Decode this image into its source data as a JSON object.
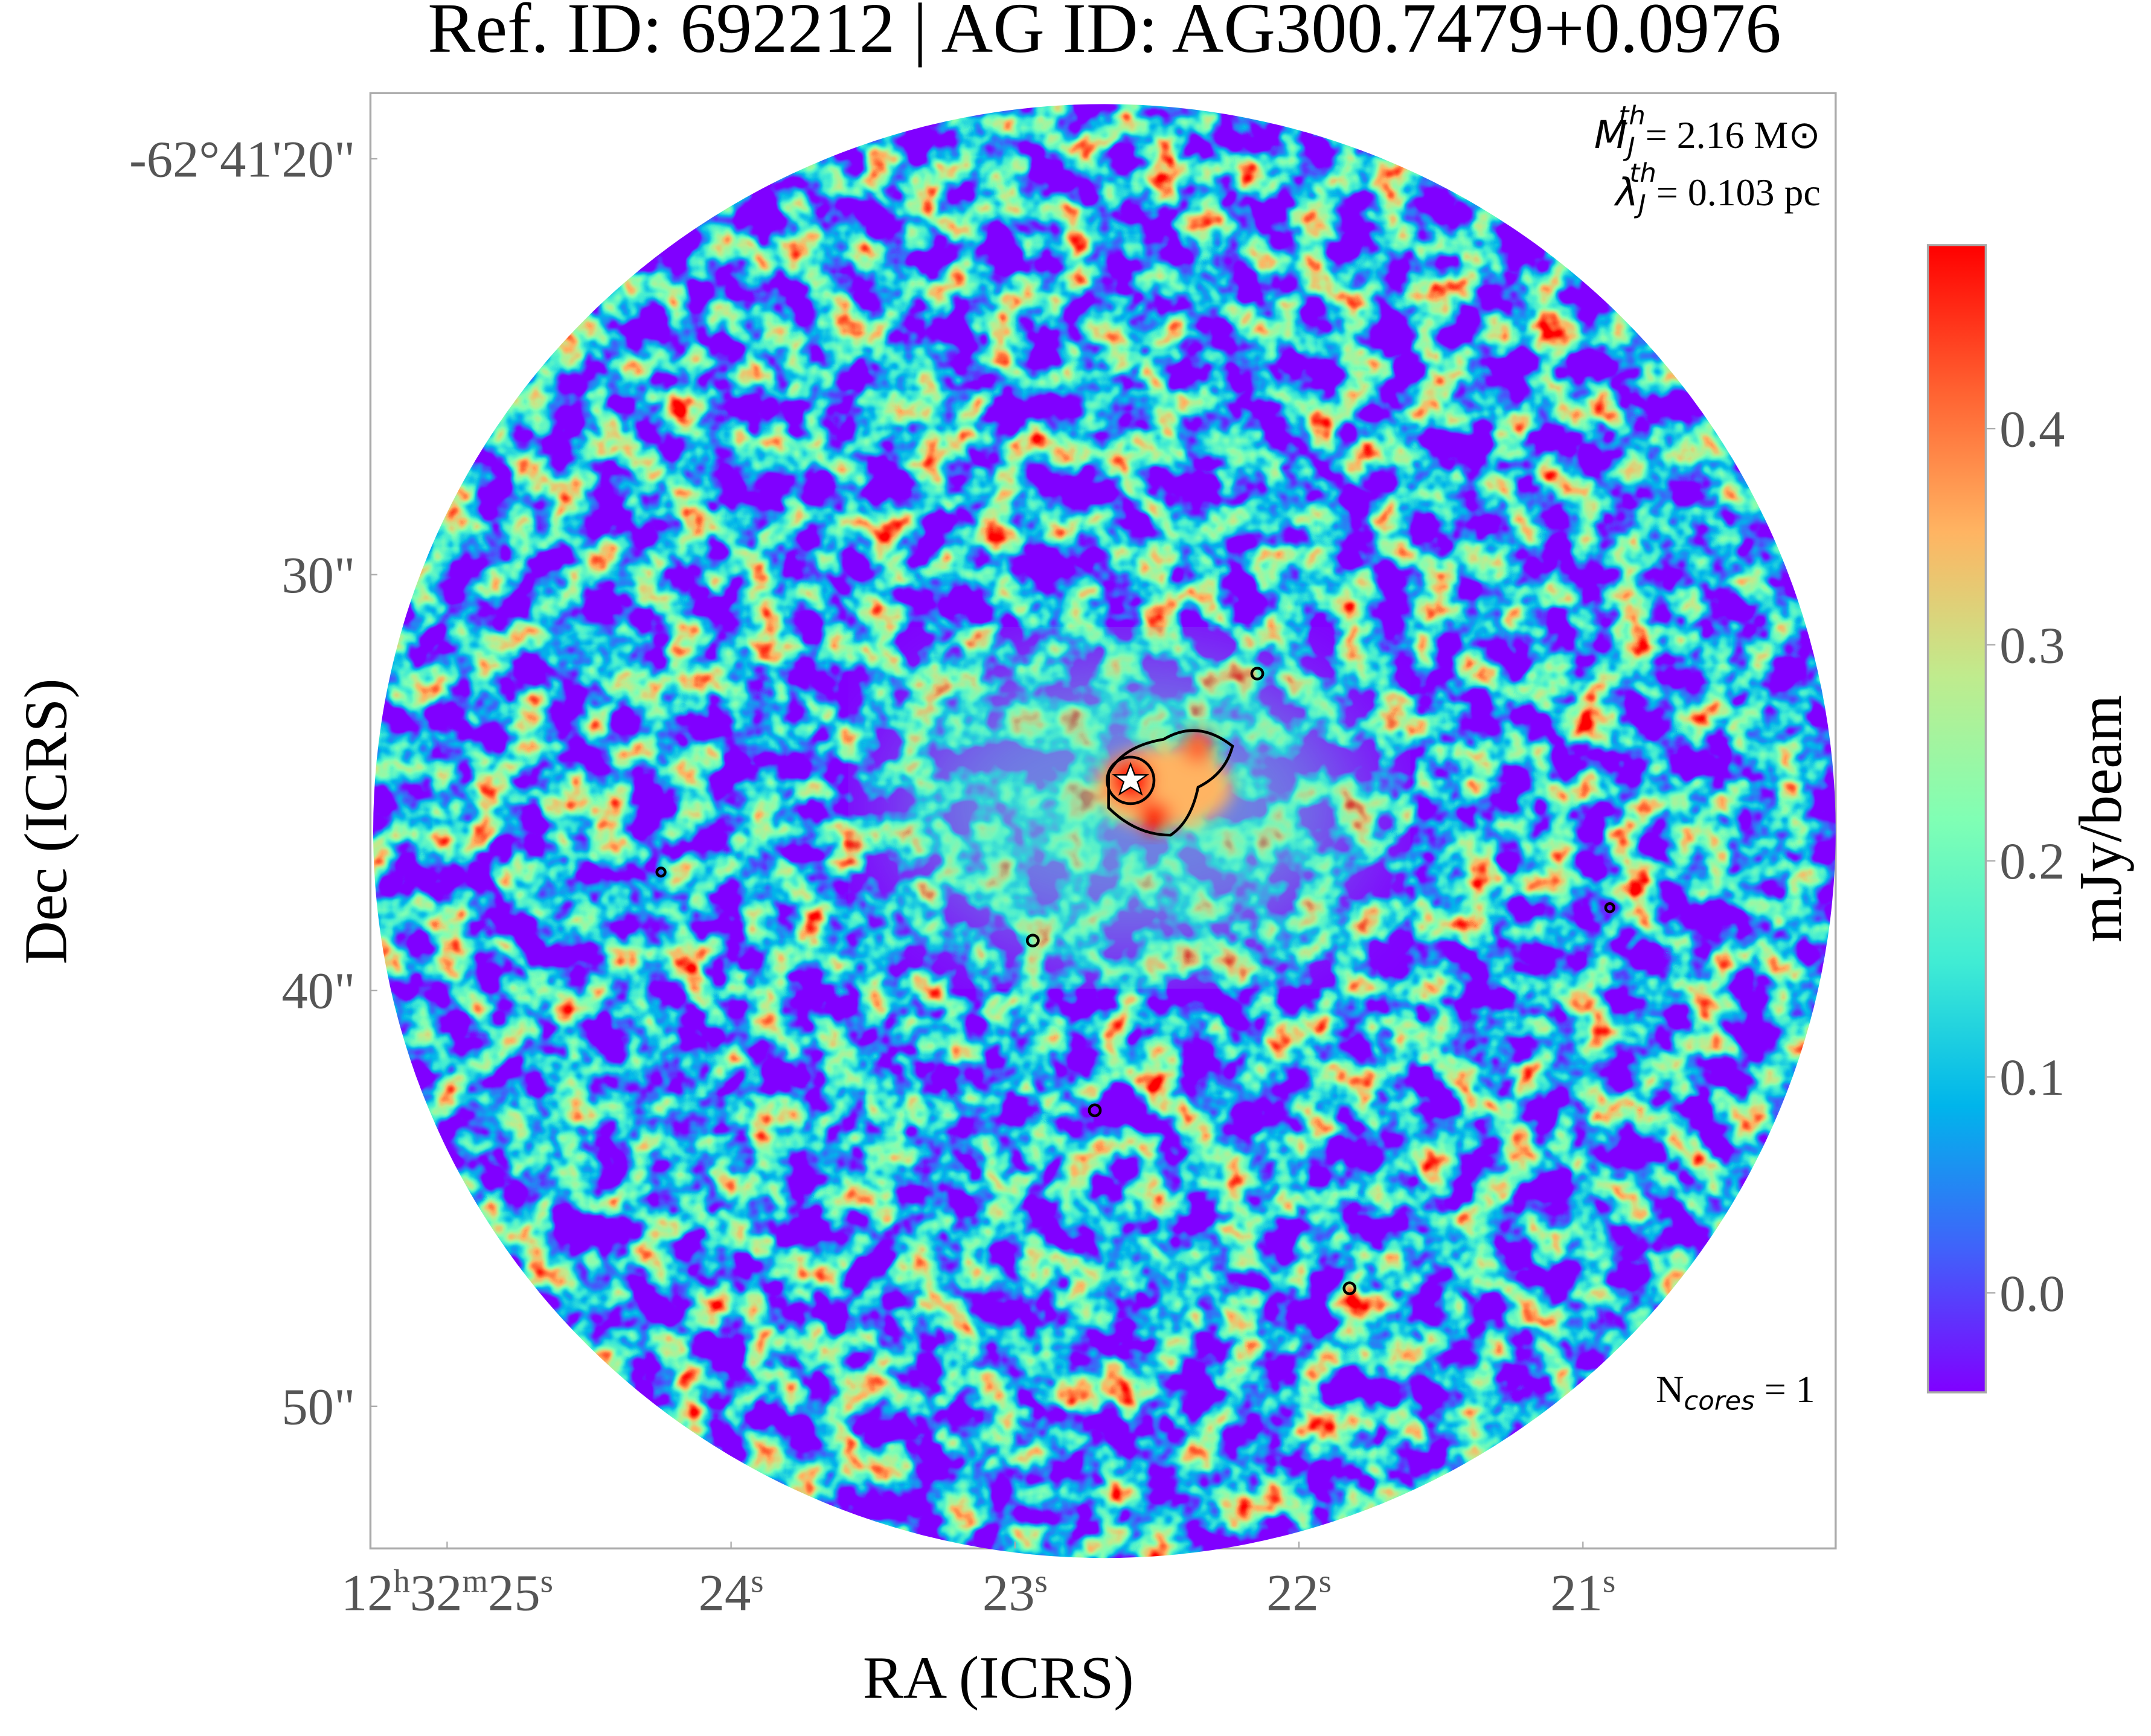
{
  "chart_data": {
    "type": "image",
    "title": "Ref. ID: 692212 | AG ID: AG300.7479+0.0976",
    "xlabel": "RA (ICRS)",
    "ylabel": "Dec (ICRS)",
    "colorbar_label": "mJy/beam",
    "xlim": [
      25.27,
      20.11
    ],
    "ylim": [
      18.42,
      53.42
    ],
    "xticks": [
      {
        "value": 25,
        "label": [
          "12",
          "h",
          "32",
          "m",
          "25",
          "s"
        ]
      },
      {
        "value": 24,
        "label": [
          "24",
          "s"
        ]
      },
      {
        "value": 23,
        "label": [
          "23",
          "s"
        ]
      },
      {
        "value": 22,
        "label": [
          "22",
          "s"
        ]
      },
      {
        "value": 21,
        "label": [
          "21",
          "s"
        ]
      }
    ],
    "yticks": [
      {
        "value": 20,
        "label": "-62°41'20\""
      },
      {
        "value": 30,
        "label": "30\""
      },
      {
        "value": 40,
        "label": "40\""
      },
      {
        "value": 50,
        "label": "50\""
      }
    ],
    "clim": [
      -0.046,
      0.485
    ],
    "cticks": [
      {
        "value": 0,
        "label": "0.0"
      },
      0.1,
      0.2,
      0.3,
      0.4
    ],
    "colormap": [
      "#8000ff",
      "#4062fa",
      "#00b5eb",
      "#40ecd4",
      "#80ffb4",
      "#c0eb8d",
      "#ffb462",
      "#ff6030",
      "#ff0000"
    ],
    "annotations": [
      {
        "base": "M",
        "sub": "J",
        "sup": "th",
        "text": "= 2.16 M⊙"
      },
      {
        "base": "λ",
        "sub": "J",
        "sup": "th",
        "text": "= 0.103 pc"
      },
      {
        "base": "N",
        "sub": "cores",
        "text": " = 1"
      }
    ]
  }
}
